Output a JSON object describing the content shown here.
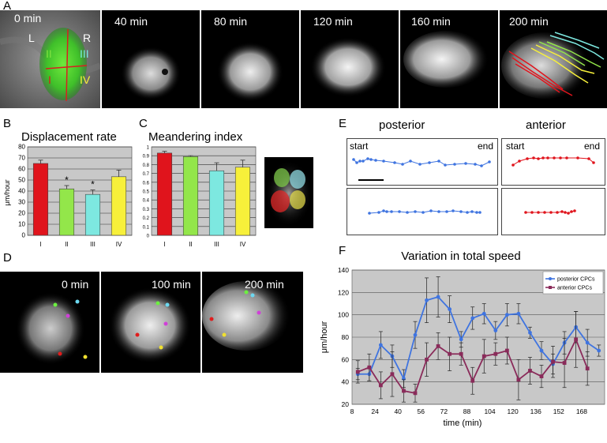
{
  "panels": {
    "A": "A",
    "B": "B",
    "C": "C",
    "D": "D",
    "E": "E",
    "F": "F"
  },
  "panel_a": {
    "times": [
      "0 min",
      "40 min",
      "80 min",
      "120 min",
      "160 min",
      "200 min"
    ],
    "region_labels": {
      "left": "L",
      "right": "R",
      "q1": "I",
      "q2": "II",
      "q3": "III",
      "q4": "IV"
    }
  },
  "panel_d": {
    "times": [
      "0 min",
      "100 min",
      "200 min"
    ]
  },
  "panel_e": {
    "posterior_title": "posterior",
    "anterior_title": "anterior",
    "start": "start",
    "end": "end"
  },
  "colors": {
    "I": "#e0141c",
    "II": "#93e64a",
    "III": "#7de8e0",
    "IV": "#f7f03a",
    "posterior": "#3f74e0",
    "anterior": "#8a2b5a",
    "plot_bg": "#c8c8c8"
  },
  "chart_data": [
    {
      "type": "bar",
      "title": "Displacement rate",
      "ylabel": "μm/hour",
      "categories": [
        "I",
        "II",
        "III",
        "IV"
      ],
      "values": [
        65,
        42,
        37,
        53
      ],
      "errors": [
        3,
        3,
        4,
        6
      ],
      "significance": [
        "",
        "*",
        "*",
        ""
      ],
      "ylim": [
        0,
        80
      ],
      "yticks": [
        "0",
        "10",
        "20",
        "30",
        "40",
        "50",
        "60",
        "70",
        "80"
      ],
      "grid": true
    },
    {
      "type": "bar",
      "title": "Meandering index",
      "categories": [
        "I",
        "II",
        "III",
        "IV"
      ],
      "values": [
        0.93,
        0.89,
        0.73,
        0.77
      ],
      "errors": [
        0.02,
        0.01,
        0.09,
        0.08
      ],
      "ylim": [
        0,
        1
      ],
      "yticks": [
        "0",
        "0.1",
        "0.2",
        "0.3",
        "0.4",
        "0.5",
        "0.6",
        "0.7",
        "0.8",
        "0.9",
        "1"
      ],
      "grid": true
    },
    {
      "type": "line",
      "title": "Variation in total speed",
      "xlabel": "time (min)",
      "ylabel": "μm/hour",
      "ylim": [
        20,
        140
      ],
      "yticks": [
        "20",
        "40",
        "60",
        "80",
        "100",
        "120",
        "140"
      ],
      "xticks": [
        "8",
        "24",
        "40",
        "56",
        "72",
        "88",
        "104",
        "120",
        "136",
        "152",
        "168"
      ],
      "legend_position": "top-right",
      "grid": true,
      "series": [
        {
          "name": "posterior CPCs",
          "x": [
            12,
            20,
            28,
            36,
            44,
            52,
            60,
            68,
            76,
            84,
            92,
            100,
            108,
            116,
            124,
            132,
            140,
            148,
            156,
            164,
            172,
            180
          ],
          "y": [
            47,
            47,
            73,
            63,
            43,
            82,
            113,
            116,
            105,
            78,
            97,
            101,
            86,
            100,
            101,
            84,
            68,
            56,
            75,
            89,
            75,
            68
          ],
          "err": [
            5,
            6,
            12,
            10,
            8,
            12,
            20,
            18,
            12,
            7,
            10,
            9,
            8,
            10,
            9,
            5,
            8,
            9,
            10,
            14,
            12,
            5
          ]
        },
        {
          "name": "anterior CPCs",
          "x": [
            12,
            20,
            28,
            36,
            44,
            52,
            60,
            68,
            76,
            84,
            92,
            100,
            108,
            116,
            124,
            132,
            140,
            148,
            156,
            164,
            172
          ],
          "y": [
            49,
            53,
            37,
            47,
            32,
            30,
            60,
            72,
            65,
            65,
            41,
            63,
            65,
            68,
            42,
            50,
            45,
            58,
            57,
            78,
            52
          ],
          "err": [
            10,
            12,
            12,
            20,
            10,
            8,
            15,
            12,
            15,
            10,
            12,
            15,
            10,
            12,
            18,
            12,
            10,
            14,
            22,
            25,
            15
          ]
        }
      ]
    }
  ]
}
